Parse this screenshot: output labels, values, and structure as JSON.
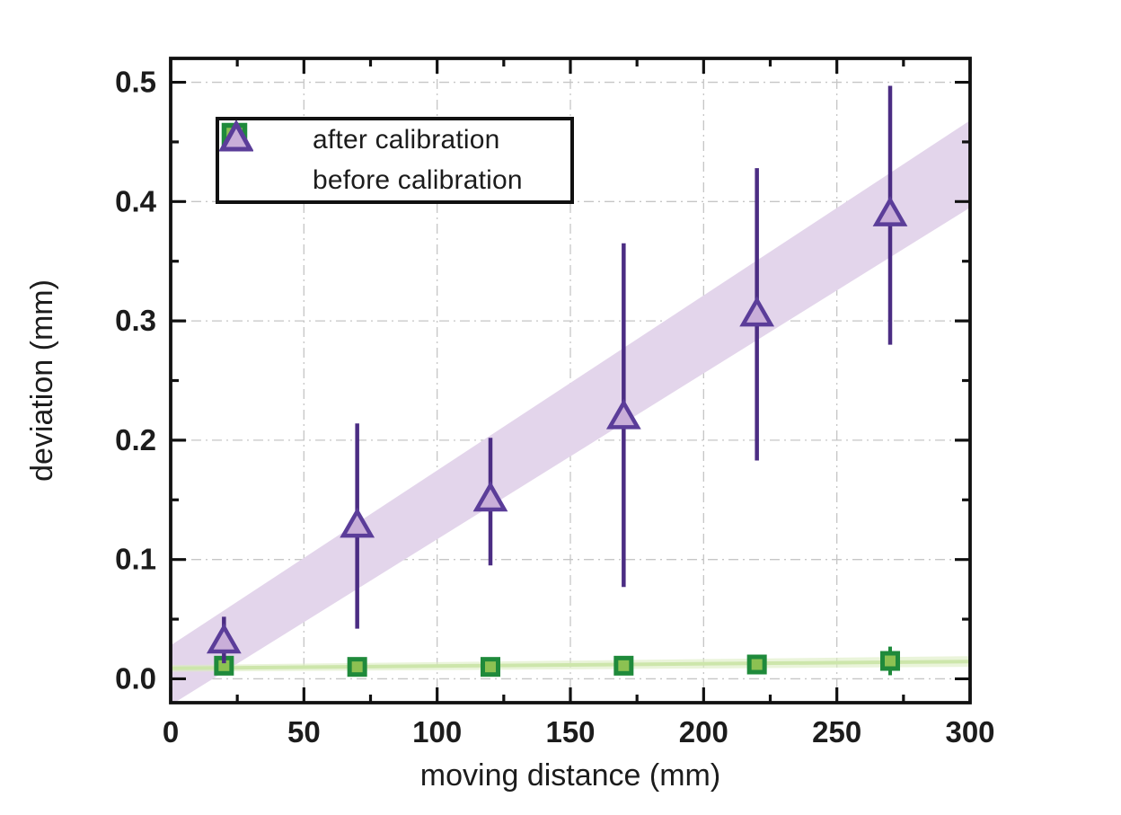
{
  "figure": {
    "background": "#ffffff"
  },
  "chart_data": {
    "type": "scatter",
    "title": "",
    "xlabel": "moving distance (mm)",
    "ylabel": "deviation (mm)",
    "xlim": [
      0,
      300
    ],
    "ylim": [
      -0.02,
      0.52
    ],
    "x_major_ticks": [
      0,
      50,
      100,
      150,
      200,
      250,
      300
    ],
    "x_minor_ticks": [
      25,
      75,
      125,
      175,
      225,
      275
    ],
    "y_major_ticks": [
      0.0,
      0.1,
      0.2,
      0.3,
      0.4,
      0.5
    ],
    "y_tick_labels": [
      "0.0",
      "0.1",
      "0.2",
      "0.3",
      "0.4",
      "0.5"
    ],
    "y_minor_ticks": [
      0.05,
      0.15,
      0.25,
      0.35,
      0.45
    ],
    "grid": true,
    "grid_color": "#c6c6c6",
    "axis_color": "#111111",
    "text_color": "#1c1c1c",
    "legend_position": "top-left",
    "series": [
      {
        "name": "after calibration",
        "marker": "square",
        "marker_fill": "#8cc152",
        "marker_stroke": "#1f8a3b",
        "errorbar_color": "#1f8a3b",
        "x": [
          20,
          70,
          120,
          170,
          220,
          270
        ],
        "y": [
          0.011,
          0.01,
          0.01,
          0.011,
          0.012,
          0.015
        ],
        "yerr_plus": [
          0.008,
          0.006,
          0.006,
          0.006,
          0.008,
          0.012
        ],
        "yerr_minus": [
          0.008,
          0.006,
          0.006,
          0.006,
          0.008,
          0.012
        ],
        "fit_band": {
          "x": [
            0,
            300
          ],
          "lower": [
            0.006,
            0.01
          ],
          "upper": [
            0.0115,
            0.019
          ],
          "color": "#dcedc2",
          "opacity": 0.6
        },
        "fit_line": {
          "x": [
            0,
            300
          ],
          "y": [
            0.0088,
            0.0145
          ],
          "color": "#cde6ab",
          "width": 4
        }
      },
      {
        "name": "before calibration",
        "marker": "triangle",
        "marker_fill": "#c9aed9",
        "marker_stroke": "#5b3d99",
        "errorbar_color": "#4b2d83",
        "x": [
          20,
          70,
          120,
          170,
          220,
          270
        ],
        "y": [
          0.032,
          0.129,
          0.151,
          0.22,
          0.306,
          0.39
        ],
        "yerr_plus": [
          0.02,
          0.085,
          0.051,
          0.145,
          0.122,
          0.107
        ],
        "yerr_minus": [
          0.019,
          0.087,
          0.056,
          0.143,
          0.123,
          0.11
        ],
        "fit_band": {
          "x": [
            0,
            300
          ],
          "lower": [
            -0.022,
            0.395
          ],
          "upper": [
            0.028,
            0.468
          ],
          "color": "#e3d5eb",
          "opacity": 1
        }
      }
    ]
  }
}
